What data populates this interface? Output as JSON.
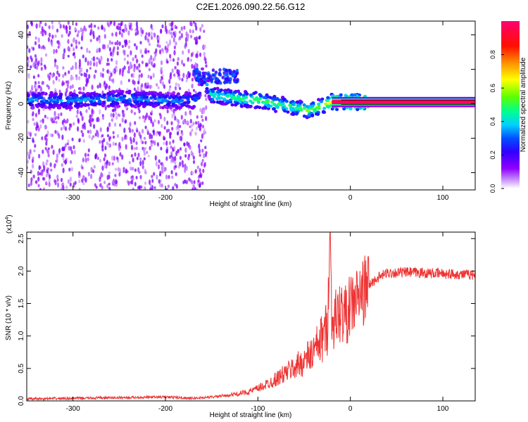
{
  "title": "C2E1.2026.090.22.56.G12",
  "chart_data": [
    {
      "type": "heatmap",
      "title": "",
      "xlabel": "Height of straight line (km)",
      "ylabel": "Frequency (Hz)",
      "xlim": [
        -350,
        135
      ],
      "ylim": [
        -50,
        48
      ],
      "xticks": [
        -300,
        -200,
        -100,
        0,
        100
      ],
      "yticks": [
        -40,
        -20,
        0,
        20,
        40
      ],
      "colorbar": {
        "label": "Normalized spectral amplitude",
        "range": [
          0,
          1
        ],
        "ticks": [
          "0.0",
          "0.2",
          "0.4",
          "0.6",
          "0.8"
        ],
        "colors": [
          "#ffffff",
          "#8f00ff",
          "#3000ff",
          "#0050ff",
          "#00d0ff",
          "#00ff70",
          "#80ff00",
          "#ffff00",
          "#ff9000",
          "#ff0000",
          "#ff0060"
        ]
      },
      "ridge": [
        {
          "x": -350,
          "y": 2,
          "level": 0.35
        },
        {
          "x": -300,
          "y": 2,
          "level": 0.35
        },
        {
          "x": -250,
          "y": 3,
          "level": 0.35
        },
        {
          "x": -200,
          "y": 2,
          "level": 0.35
        },
        {
          "x": -165,
          "y": 2,
          "level": 0.32
        },
        {
          "x": -160,
          "y": 16,
          "level": 0.3
        },
        {
          "x": -150,
          "y": 5,
          "level": 0.45
        },
        {
          "x": -120,
          "y": 3,
          "level": 0.5
        },
        {
          "x": -100,
          "y": 2,
          "level": 0.55
        },
        {
          "x": -80,
          "y": 0,
          "level": 0.5
        },
        {
          "x": -60,
          "y": -2,
          "level": 0.5
        },
        {
          "x": -45,
          "y": -4,
          "level": 0.55
        },
        {
          "x": -30,
          "y": -1,
          "level": 0.55
        },
        {
          "x": -20,
          "y": 1,
          "level": 0.7
        },
        {
          "x": 0,
          "y": 1,
          "level": 0.9
        },
        {
          "x": 135,
          "y": 1,
          "level": 0.9
        }
      ]
    },
    {
      "type": "line",
      "title": "",
      "xlabel": "Height of straight line (km)",
      "ylabel": "SNR (10 * v/v)",
      "y_multiplier": "(x10",
      "y_multiplier_exp": "4",
      "xlim": [
        -350,
        135
      ],
      "ylim": [
        0,
        2.6
      ],
      "xticks": [
        -300,
        -200,
        -100,
        0,
        100
      ],
      "yticks": [
        "0.0",
        "0.5",
        "1.0",
        "1.5",
        "2.0",
        "2.5"
      ],
      "color": "#ee3333",
      "series": [
        {
          "x": [
            -350,
            -300,
            -250,
            -200,
            -170,
            -150,
            -130,
            -110,
            -100,
            -90,
            -80,
            -70,
            -60,
            -50,
            -40,
            -35,
            -30,
            -25,
            -22,
            -20,
            -15,
            -10,
            -5,
            0,
            5,
            10,
            15,
            20,
            30,
            40,
            60,
            80,
            100,
            120,
            135
          ],
          "y": [
            0.03,
            0.04,
            0.05,
            0.06,
            0.04,
            0.06,
            0.09,
            0.14,
            0.19,
            0.26,
            0.34,
            0.43,
            0.52,
            0.62,
            0.75,
            0.85,
            0.98,
            1.12,
            2.6,
            1.2,
            1.3,
            1.38,
            1.32,
            1.45,
            1.55,
            1.62,
            1.7,
            1.78,
            1.9,
            1.97,
            1.98,
            1.97,
            1.96,
            1.95,
            1.94
          ]
        }
      ]
    }
  ]
}
